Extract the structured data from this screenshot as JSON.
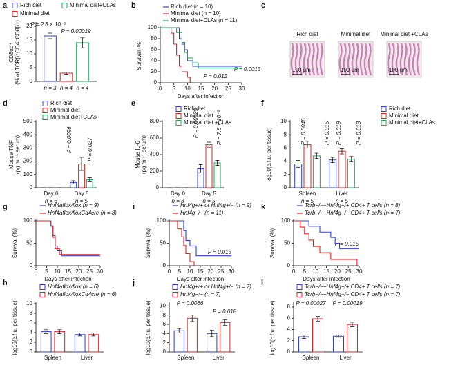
{
  "chart_data": [
    {
      "panel": "a",
      "type": "bar",
      "ylabel": [
        "CD8αα⁺",
        "(% of TCRβ⁺CD4⁻CD8β⁻)"
      ],
      "ylim": [
        0,
        21
      ],
      "yticks": [
        0,
        5,
        10,
        15,
        20
      ],
      "bar_labels": [
        "n = 3",
        "n = 4",
        "n = 4"
      ],
      "series": [
        {
          "name": "Rich diet",
          "color": "#2b3fd6",
          "values": [
            16.5
          ],
          "errors": [
            1.0
          ]
        },
        {
          "name": "Minimal diet",
          "color": "#e02020",
          "values": [
            3.0
          ],
          "errors": [
            0.4
          ]
        },
        {
          "name": "Minimal diet+CLAs",
          "color": "#1fa35b",
          "values": [
            14.0
          ],
          "errors": [
            1.8
          ]
        }
      ],
      "annotations": [
        "P = 2.8 × 10⁻⁵",
        "P = 0.00019"
      ]
    },
    {
      "panel": "b",
      "type": "line",
      "ylabel": [
        "Survival (%)"
      ],
      "xlabel": "Days after infection",
      "xlim": [
        0,
        30
      ],
      "xticks": [
        0,
        5,
        10,
        15,
        20,
        25,
        30
      ],
      "ylim": [
        0,
        100
      ],
      "yticks": [
        0,
        20,
        40,
        60,
        80,
        100
      ],
      "series": [
        {
          "name": "Rich diet (n = 10)",
          "color": "#2b3fd6",
          "x": [
            0,
            7,
            7,
            8,
            8,
            9,
            9,
            10,
            10,
            12,
            12,
            30
          ],
          "values": [
            100,
            100,
            80,
            80,
            70,
            70,
            60,
            60,
            40,
            40,
            30,
            30
          ]
        },
        {
          "name": "Minimal diet (n = 10)",
          "color": "#e02020",
          "x": [
            0,
            4,
            4,
            5,
            5,
            6,
            6,
            7,
            7,
            8,
            8,
            10,
            10,
            11,
            11
          ],
          "values": [
            100,
            100,
            90,
            90,
            70,
            70,
            50,
            50,
            30,
            30,
            20,
            20,
            10,
            10,
            0
          ]
        },
        {
          "name": "Minimal diet+CLAs (n = 11)",
          "color": "#1fa35b",
          "x": [
            0,
            6,
            6,
            8,
            8,
            9,
            9,
            10,
            10,
            12,
            12,
            14,
            14,
            30
          ],
          "values": [
            100,
            100,
            91,
            91,
            73,
            73,
            55,
            55,
            45,
            45,
            36,
            36,
            27,
            27
          ]
        }
      ],
      "annotations": [
        "P = 0.012",
        "P = 0.0013"
      ]
    },
    {
      "panel": "d",
      "type": "bar",
      "ylabel": [
        "Mouse TNF",
        "(pg ml⁻¹ serum)"
      ],
      "ylim": [
        0,
        500
      ],
      "yticks": [
        0,
        100,
        200,
        300,
        400,
        500
      ],
      "categories": [
        "Day 0",
        "Day 5"
      ],
      "category_sublabels": [
        "n = 3",
        "n = 5"
      ],
      "series": [
        {
          "name": "Rich diet",
          "color": "#2b3fd6",
          "values": [
            0,
            40
          ],
          "errors": [
            0,
            12
          ]
        },
        {
          "name": "Minimal diet",
          "color": "#e02020",
          "values": [
            0,
            180
          ],
          "errors": [
            0,
            50
          ]
        },
        {
          "name": "Minimal diet+CLAs",
          "color": "#1fa35b",
          "values": [
            0,
            60
          ],
          "errors": [
            0,
            15
          ]
        }
      ],
      "annotations": [
        "P = 0.0096",
        "P = 0.027"
      ]
    },
    {
      "panel": "e",
      "type": "bar",
      "ylabel": [
        "Mouse IL-6",
        "(pg ml⁻¹ serum)"
      ],
      "ylim": [
        0,
        800
      ],
      "yticks": [
        0,
        200,
        400,
        600,
        800
      ],
      "categories": [
        "Day 0",
        "Day 5"
      ],
      "category_sublabels": [
        "n = 3",
        "n = 5"
      ],
      "series": [
        {
          "name": "Rich diet",
          "color": "#2b3fd6",
          "values": [
            0,
            230
          ],
          "errors": [
            0,
            50
          ]
        },
        {
          "name": "Minimal diet",
          "color": "#e02020",
          "values": [
            0,
            520
          ],
          "errors": [
            0,
            30
          ]
        },
        {
          "name": "Minimal diet +CLAs",
          "color": "#1fa35b",
          "values": [
            0,
            300
          ],
          "errors": [
            0,
            30
          ]
        }
      ],
      "annotations": [
        "P = 0.00029",
        "P = 7.6 × 10⁻⁵"
      ]
    },
    {
      "panel": "f",
      "type": "bar",
      "ylabel": [
        "log10(c.f.u. per tissue)"
      ],
      "ylim": [
        0,
        10
      ],
      "yticks": [
        0,
        2,
        4,
        6,
        8,
        10
      ],
      "categories": [
        "Spleen",
        "Liver"
      ],
      "category_sublabels": [
        "n = 5",
        "n = 5"
      ],
      "series": [
        {
          "name": "Rich diet",
          "color": "#2b3fd6",
          "values": [
            3.6,
            4.2
          ],
          "errors": [
            0.5,
            0.4
          ]
        },
        {
          "name": "Minimal diet",
          "color": "#e02020",
          "values": [
            6.5,
            5.5
          ],
          "errors": [
            0.5,
            0.4
          ]
        },
        {
          "name": "Minimal diet+CLAs",
          "color": "#1fa35b",
          "values": [
            4.8,
            4.3
          ],
          "errors": [
            0.4,
            0.4
          ]
        }
      ],
      "annotations": [
        "P = 0.0046",
        "P = 0.015",
        "P = 0.019",
        "P = 0.013"
      ]
    },
    {
      "panel": "g",
      "type": "line",
      "ylabel": [
        "Survival (%)"
      ],
      "xlabel": "Days after infection",
      "xlim": [
        0,
        30
      ],
      "xticks": [
        0,
        5,
        10,
        15,
        20,
        25,
        30
      ],
      "ylim": [
        0,
        100
      ],
      "yticks": [
        0,
        50,
        100
      ],
      "series": [
        {
          "name": "Hnf4aflox/flox (n = 9)",
          "color": "#2b3fd6",
          "x": [
            0,
            7,
            7,
            8,
            8,
            9,
            9,
            10,
            10,
            12,
            12,
            30
          ],
          "values": [
            100,
            100,
            89,
            89,
            67,
            67,
            44,
            44,
            33,
            33,
            22,
            22
          ]
        },
        {
          "name": "Hnf4aflox/floxCd4cre (n = 8)",
          "color": "#e02020",
          "x": [
            0,
            7,
            7,
            8,
            8,
            9,
            9,
            11,
            11,
            30
          ],
          "values": [
            100,
            100,
            88,
            88,
            63,
            63,
            38,
            38,
            25,
            25
          ]
        }
      ]
    },
    {
      "panel": "i",
      "type": "line",
      "ylabel": [
        "Survival (%)"
      ],
      "xlabel": "Days after infection",
      "xlim": [
        0,
        30
      ],
      "xticks": [
        0,
        5,
        10,
        15,
        20,
        25,
        30
      ],
      "ylim": [
        0,
        100
      ],
      "yticks": [
        0,
        50,
        100
      ],
      "series": [
        {
          "name": "Hnf4g+/+ or Hnf4g+/− (n = 9)",
          "color": "#2b3fd6",
          "x": [
            0,
            7,
            7,
            8,
            8,
            10,
            10,
            13,
            13,
            30
          ],
          "values": [
            100,
            100,
            78,
            78,
            56,
            56,
            44,
            44,
            22,
            22
          ]
        },
        {
          "name": "Hnf4g−/− (n = 11)",
          "color": "#e02020",
          "x": [
            0,
            4,
            4,
            6,
            6,
            7,
            7,
            8,
            8,
            10,
            10,
            12,
            12
          ],
          "values": [
            100,
            100,
            82,
            82,
            64,
            64,
            45,
            45,
            27,
            27,
            9,
            9,
            0
          ]
        }
      ],
      "annotations": [
        "P = 0.013"
      ]
    },
    {
      "panel": "k",
      "type": "line",
      "ylabel": [
        "Survival (%)"
      ],
      "xlabel": "Days after infection",
      "xlim": [
        0,
        30
      ],
      "xticks": [
        0,
        5,
        10,
        15,
        20,
        25,
        30
      ],
      "ylim": [
        0,
        100
      ],
      "yticks": [
        0,
        50,
        100
      ],
      "series": [
        {
          "name": "Tcrb−/−+Hnf4g+/+ CD4+ T cells (n = 8)",
          "color": "#2b3fd6",
          "x": [
            0,
            7,
            7,
            12,
            12,
            17,
            17,
            19,
            19,
            21,
            21,
            30
          ],
          "values": [
            100,
            100,
            88,
            88,
            75,
            75,
            63,
            63,
            50,
            50,
            38,
            38
          ]
        },
        {
          "name": "Tcrb−/−+Hnf4g−/− CD4+ T cells (n = 7)",
          "color": "#e02020",
          "x": [
            0,
            3,
            3,
            5,
            5,
            7,
            7,
            9,
            9,
            12,
            12,
            17,
            17,
            29,
            29
          ],
          "values": [
            100,
            100,
            86,
            86,
            71,
            71,
            57,
            57,
            43,
            43,
            29,
            29,
            14,
            14,
            0
          ]
        }
      ],
      "annotations": [
        "P = 0.015"
      ]
    },
    {
      "panel": "h",
      "type": "bar",
      "ylabel": [
        "log10(c.f.u. per tissue)"
      ],
      "ylim": [
        0,
        10
      ],
      "yticks": [
        0,
        2,
        4,
        6,
        8,
        10
      ],
      "categories": [
        "Spleen",
        "Liver"
      ],
      "series": [
        {
          "name": "Hnf4aflox/flox (n = 6)",
          "color": "#2b3fd6",
          "values": [
            4.2,
            3.6
          ],
          "errors": [
            0.4,
            0.3
          ]
        },
        {
          "name": "Hnf4aflox/floxCd4cre (n = 6)",
          "color": "#e02020",
          "values": [
            4.2,
            3.6
          ],
          "errors": [
            0.4,
            0.3
          ]
        }
      ]
    },
    {
      "panel": "j",
      "type": "bar",
      "ylabel": [
        "log10(c.f.u. per tissue)"
      ],
      "ylim": [
        0,
        10.5
      ],
      "yticks": [
        0,
        2,
        4,
        6,
        8,
        10
      ],
      "categories": [
        "Spleen",
        "Liver"
      ],
      "series": [
        {
          "name": "Hnf4g+/+ or Hnf4g+/− (n = 7)",
          "color": "#2b3fd6",
          "values": [
            4.6,
            4.0
          ],
          "errors": [
            0.5,
            0.7
          ]
        },
        {
          "name": "Hnf4g−/− (n = 7)",
          "color": "#e02020",
          "values": [
            7.3,
            6.4
          ],
          "errors": [
            0.7,
            0.6
          ]
        }
      ],
      "annotations": [
        "P = 0.0066",
        "P = 0.018"
      ]
    },
    {
      "panel": "l",
      "type": "bar",
      "ylabel": [
        "log10(c.f.u. per tissue)"
      ],
      "ylim": [
        0,
        8.6
      ],
      "yticks": [
        0,
        2,
        4,
        6,
        8
      ],
      "categories": [
        "Spleen",
        "Liver"
      ],
      "series": [
        {
          "name": "Tcrb−/−+Hnf4g+/+ CD4+ T cells (n = 7)",
          "color": "#2b3fd6",
          "values": [
            2.7,
            2.8
          ],
          "errors": [
            0.3,
            0.2
          ]
        },
        {
          "name": "Tcrb−/−+Hnf4g−/− CD4+ T cells (n = 7)",
          "color": "#e02020",
          "values": [
            5.9,
            4.9
          ],
          "errors": [
            0.4,
            0.4
          ]
        }
      ],
      "annotations": [
        "P = 0.00027",
        "P = 0.00019"
      ]
    }
  ],
  "panel_c": {
    "panel": "c",
    "images": [
      {
        "label": "Rich diet",
        "scale": "100 μm"
      },
      {
        "label": "Minimal diet",
        "scale": "100 μm"
      },
      {
        "label": "Minimal diet +CLAs",
        "scale": "100 μm"
      }
    ]
  }
}
